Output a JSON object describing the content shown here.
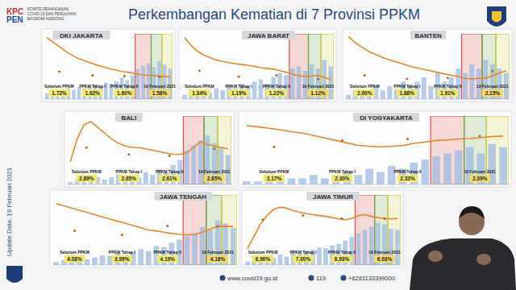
{
  "page": {
    "title": "Perkembangan Kematian di 7 Provinsi PPKM",
    "logo": [
      "KPC",
      "PEN"
    ],
    "logo_text": [
      "KOMITE PENANGANAN",
      "COVID-19 DAN PEMULIHAN",
      "EKONOMI NASIONAL"
    ],
    "update": "Update Data: 19 Februari 2021",
    "footer": [
      "www.covid19.go.id",
      "119",
      "+6281133399000"
    ]
  },
  "chart_data": [
    {
      "type": "line",
      "title": "DKI JAKARTA",
      "xlim": [
        -0.5,
        23.5
      ],
      "ylim": [
        1.0,
        2.7
      ],
      "y2lim": [
        0,
        55
      ],
      "tick_labels": false,
      "series": [
        {
          "type": "bar",
          "axis": "y2",
          "color": "#9dbbe3",
          "values": [
            5,
            6,
            8,
            7,
            9,
            8,
            10,
            9,
            11,
            12,
            10,
            14,
            13,
            15,
            18,
            16,
            20,
            25,
            28,
            30,
            27,
            32,
            29,
            26
          ]
        },
        {
          "type": "line",
          "color": "#e8862a",
          "values": [
            2.6,
            2.5,
            2.4,
            2.3,
            2.2,
            2.12,
            2.05,
            2.0,
            1.95,
            1.9,
            1.86,
            1.82,
            1.78,
            1.75,
            1.72,
            1.7,
            1.68,
            1.65,
            1.63,
            1.62,
            1.61,
            1.6,
            1.59,
            1.58
          ]
        }
      ],
      "periods": [
        {
          "start": 16.5,
          "end": 19.5,
          "color": "#d9534f"
        },
        {
          "start": 19.5,
          "end": 21.5,
          "color": "#6fa84a"
        },
        {
          "start": 21.5,
          "end": 23.5,
          "color": "#d8cf4a"
        }
      ],
      "phases": {
        "categories": [
          "Sebelum PPKM",
          "PPKM Tahap I",
          "PPKM Tahap II",
          "19 Februari 2021"
        ],
        "values": [
          1.72,
          1.62,
          1.6,
          1.58
        ],
        "value_labels": [
          "1.72%",
          "1.62%",
          "1.60%",
          "1.58%"
        ]
      }
    },
    {
      "type": "line",
      "title": "JAWA BARAT",
      "xlim": [
        -0.5,
        23.5
      ],
      "ylim": [
        0.6,
        2.3
      ],
      "y2lim": [
        0,
        30
      ],
      "tick_labels": false,
      "series": [
        {
          "type": "bar",
          "axis": "y2",
          "color": "#9dbbe3",
          "values": [
            2,
            3,
            2,
            4,
            3,
            5,
            4,
            6,
            5,
            7,
            6,
            8,
            9,
            7,
            10,
            12,
            11,
            14,
            15,
            13,
            16,
            14,
            18,
            15
          ]
        },
        {
          "type": "line",
          "color": "#e8862a",
          "values": [
            2.2,
            2.0,
            1.85,
            1.75,
            1.68,
            1.62,
            1.58,
            1.55,
            1.52,
            1.5,
            1.48,
            1.45,
            1.42,
            1.4,
            1.38,
            1.34,
            1.3,
            1.25,
            1.21,
            1.19,
            1.2,
            1.22,
            1.16,
            1.12
          ]
        }
      ],
      "periods": [
        {
          "start": 16.5,
          "end": 19.5,
          "color": "#d9534f"
        },
        {
          "start": 19.5,
          "end": 21.5,
          "color": "#6fa84a"
        },
        {
          "start": 21.5,
          "end": 23.5,
          "color": "#d8cf4a"
        }
      ],
      "phases": {
        "categories": [
          "Sebelum PPKM",
          "PPKM Tahap I",
          "PPKM Tahap II",
          "19 Februari 2021"
        ],
        "values": [
          1.34,
          1.19,
          1.22,
          1.12
        ],
        "value_labels": [
          "1.34%",
          "1.19%",
          "1.22%",
          "1.12%"
        ]
      }
    },
    {
      "type": "line",
      "title": "BANTEN",
      "xlim": [
        -0.5,
        23.5
      ],
      "ylim": [
        1.2,
        3.4
      ],
      "y2lim": [
        0,
        15
      ],
      "tick_labels": false,
      "series": [
        {
          "type": "bar",
          "axis": "y2",
          "color": "#9dbbe3",
          "values": [
            1,
            2,
            1,
            2,
            3,
            2,
            3,
            2,
            4,
            3,
            4,
            5,
            3,
            6,
            4,
            5,
            7,
            6,
            8,
            7,
            9,
            8,
            7,
            6
          ]
        },
        {
          "type": "line",
          "color": "#e8862a",
          "values": [
            3.3,
            3.1,
            2.95,
            2.8,
            2.7,
            2.6,
            2.52,
            2.45,
            2.38,
            2.3,
            2.25,
            2.2,
            2.15,
            2.1,
            2.05,
            2.0,
            1.96,
            1.9,
            1.88,
            1.9,
            1.91,
            1.98,
            2.08,
            2.15
          ]
        }
      ],
      "periods": [
        {
          "start": 16.5,
          "end": 19.5,
          "color": "#d9534f"
        },
        {
          "start": 19.5,
          "end": 21.5,
          "color": "#6fa84a"
        },
        {
          "start": 21.5,
          "end": 23.5,
          "color": "#d8cf4a"
        }
      ],
      "phases": {
        "categories": [
          "Sebelum PPKM",
          "PPKM Tahap I",
          "PPKM Tahap II",
          "19 Februari 2021"
        ],
        "values": [
          2.0,
          1.88,
          1.91,
          2.15
        ],
        "value_labels": [
          "2.00%",
          "1.88%",
          "1.91%",
          "2.15%"
        ]
      }
    },
    {
      "type": "line",
      "title": "BALI",
      "xlim": [
        -0.5,
        23.5
      ],
      "ylim": [
        1.6,
        4.0
      ],
      "y2lim": [
        0,
        28
      ],
      "tick_labels": false,
      "series": [
        {
          "type": "bar",
          "axis": "y2",
          "color": "#9dbbe3",
          "values": [
            1,
            2,
            3,
            2,
            3,
            2,
            3,
            4,
            3,
            4,
            3,
            5,
            4,
            6,
            5,
            8,
            10,
            14,
            16,
            18,
            20,
            17,
            15,
            12
          ]
        },
        {
          "type": "line",
          "color": "#e8862a",
          "values": [
            2.4,
            3.2,
            3.7,
            3.8,
            3.6,
            3.4,
            3.2,
            3.05,
            2.95,
            2.9,
            2.89,
            2.85,
            2.8,
            2.75,
            2.7,
            2.66,
            2.65,
            2.72,
            2.9,
            3.1,
            3.0,
            2.95,
            2.9,
            2.85
          ]
        }
      ],
      "periods": [
        {
          "start": 16.5,
          "end": 19.5,
          "color": "#d9534f"
        },
        {
          "start": 19.5,
          "end": 21.5,
          "color": "#6fa84a"
        },
        {
          "start": 21.5,
          "end": 23.5,
          "color": "#d8cf4a"
        }
      ],
      "phases": {
        "categories": [
          "Sebelum PPKM",
          "PPKM Tahap I",
          "PPKM Tahap II",
          "19 Februari 2021"
        ],
        "values": [
          2.89,
          2.65,
          2.61,
          2.85
        ],
        "value_labels": [
          "2.89%",
          "2.65%",
          "2.61%",
          "2.85%"
        ]
      }
    },
    {
      "type": "line",
      "title": "DI YOGYAKARTA",
      "xlim": [
        -0.5,
        23.5
      ],
      "ylim": [
        1.4,
        2.8
      ],
      "y2lim": [
        0,
        22
      ],
      "tick_labels": false,
      "series": [
        {
          "type": "bar",
          "axis": "y2",
          "color": "#9dbbe3",
          "values": [
            1,
            1,
            2,
            1,
            2,
            2,
            3,
            2,
            3,
            4,
            3,
            5,
            4,
            6,
            5,
            7,
            8,
            9,
            10,
            11,
            12,
            10,
            13,
            12
          ]
        },
        {
          "type": "line",
          "color": "#e8862a",
          "values": [
            2.6,
            2.58,
            2.55,
            2.52,
            2.48,
            2.45,
            2.4,
            2.35,
            2.3,
            2.25,
            2.2,
            2.18,
            2.17,
            2.18,
            2.2,
            2.24,
            2.27,
            2.3,
            2.31,
            2.33,
            2.34,
            2.36,
            2.38,
            2.39
          ]
        }
      ],
      "periods": [
        {
          "start": 16.5,
          "end": 19.5,
          "color": "#d9534f"
        },
        {
          "start": 19.5,
          "end": 21.5,
          "color": "#6fa84a"
        },
        {
          "start": 21.5,
          "end": 23.5,
          "color": "#d8cf4a"
        }
      ],
      "phases": {
        "categories": [
          "Sebelum PPKM",
          "PPKM Tahap I",
          "PPKM Tahap II",
          "18 Februari 2021"
        ],
        "values": [
          2.17,
          2.3,
          2.33,
          2.39
        ],
        "value_labels": [
          "2.17%",
          "2.30%",
          "2.33%",
          "2.39%"
        ]
      }
    },
    {
      "type": "line",
      "title": "JAWA TENGAH",
      "xlim": [
        -0.5,
        23.5
      ],
      "ylim": [
        3.3,
        4.9
      ],
      "y2lim": [
        0,
        110
      ],
      "tick_labels": false,
      "series": [
        {
          "type": "bar",
          "axis": "y2",
          "color": "#9dbbe3",
          "values": [
            5,
            8,
            6,
            10,
            9,
            12,
            15,
            14,
            18,
            16,
            20,
            25,
            22,
            30,
            28,
            35,
            40,
            45,
            50,
            60,
            55,
            70,
            65,
            58
          ]
        },
        {
          "type": "line",
          "color": "#e8862a",
          "values": [
            4.7,
            4.65,
            4.6,
            4.55,
            4.5,
            4.45,
            4.4,
            4.35,
            4.3,
            4.25,
            4.2,
            4.15,
            4.1,
            4.08,
            4.05,
            4.02,
            4.0,
            3.99,
            4.0,
            4.05,
            4.12,
            4.19,
            4.18,
            4.18
          ]
        }
      ],
      "periods": [
        {
          "start": 16.5,
          "end": 19.5,
          "color": "#d9534f"
        },
        {
          "start": 19.5,
          "end": 21.5,
          "color": "#6fa84a"
        },
        {
          "start": 21.5,
          "end": 23.5,
          "color": "#d8cf4a"
        }
      ],
      "phases": {
        "categories": [
          "Sebelum PPKM",
          "PPKM Tahap I",
          "PPKM Tahap II",
          "19 Februari 2021"
        ],
        "values": [
          4.08,
          3.99,
          4.19,
          4.18
        ],
        "value_labels": [
          "4.08%",
          "3.99%",
          "4.19%",
          "4.18%"
        ]
      }
    },
    {
      "type": "line",
      "title": "JAWA TIMUR",
      "xlim": [
        -0.5,
        23.5
      ],
      "ylim": [
        5.8,
        7.5
      ],
      "y2lim": [
        0,
        100
      ],
      "tick_labels": false,
      "series": [
        {
          "type": "bar",
          "axis": "y2",
          "color": "#9dbbe3",
          "values": [
            5,
            8,
            10,
            12,
            10,
            15,
            12,
            18,
            16,
            20,
            22,
            25,
            24,
            28,
            30,
            35,
            40,
            45,
            50,
            55,
            60,
            58,
            52,
            50
          ]
        },
        {
          "type": "line",
          "color": "#e8862a",
          "values": [
            6.2,
            6.5,
            6.8,
            7.0,
            7.15,
            7.2,
            7.18,
            7.12,
            7.08,
            7.05,
            7.02,
            7.0,
            6.98,
            6.95,
            6.92,
            6.9,
            6.93,
            7.0,
            7.02,
            6.98,
            6.95,
            6.93,
            6.92,
            6.93
          ]
        }
      ],
      "periods": [
        {
          "start": 16.5,
          "end": 19.5,
          "color": "#d9534f"
        },
        {
          "start": 19.5,
          "end": 21.5,
          "color": "#6fa84a"
        },
        {
          "start": 21.5,
          "end": 23.5,
          "color": "#d8cf4a"
        }
      ],
      "phases": {
        "categories": [
          "Sebelum PPKM",
          "PPKM Tahap I",
          "PPKM Tahap II",
          "19 Februari 2021"
        ],
        "values": [
          6.9,
          7.0,
          6.93,
          6.93
        ],
        "value_labels": [
          "6.90%",
          "7.00%",
          "6.93%",
          "6.93%"
        ]
      }
    }
  ]
}
